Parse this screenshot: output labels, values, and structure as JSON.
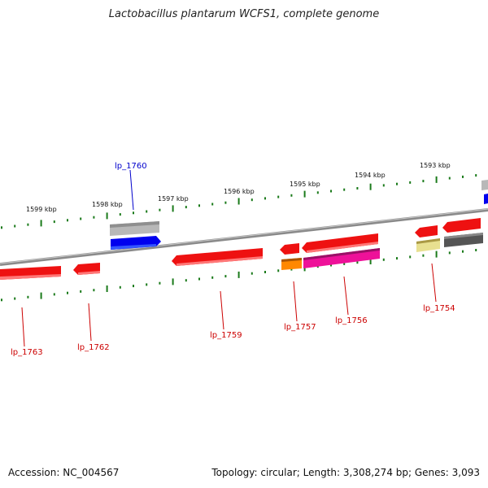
{
  "title": "Lactobacillus plantarum WCFS1, complete genome",
  "footer": {
    "accession": "Accession: NC_004567",
    "summary": "Topology: circular; Length: 3,308,274 bp; Genes: 3,093"
  },
  "kbp_labels": [
    "1599 kbp",
    "1598 kbp",
    "1597 kbp",
    "1596 kbp",
    "1595 kbp",
    "1594 kbp",
    "1593 kbp"
  ],
  "gene_labels": [
    "lp_1760",
    "lp_1763",
    "lp_1762",
    "lp_1759",
    "lp_1757",
    "lp_1756",
    "lp_1754"
  ],
  "colors": {
    "backbone": "#8a8a8a",
    "tick": "#1a7a1a",
    "gene_red": "#ee1111",
    "label_red": "#cc0000",
    "label_blue": "#0000cc",
    "blue": "#0000ee",
    "gray_light": "#b8b8b8",
    "gray_dark": "#555555",
    "orange": "#ff8800",
    "magenta": "#ee1199",
    "khaki": "#e8e090"
  }
}
